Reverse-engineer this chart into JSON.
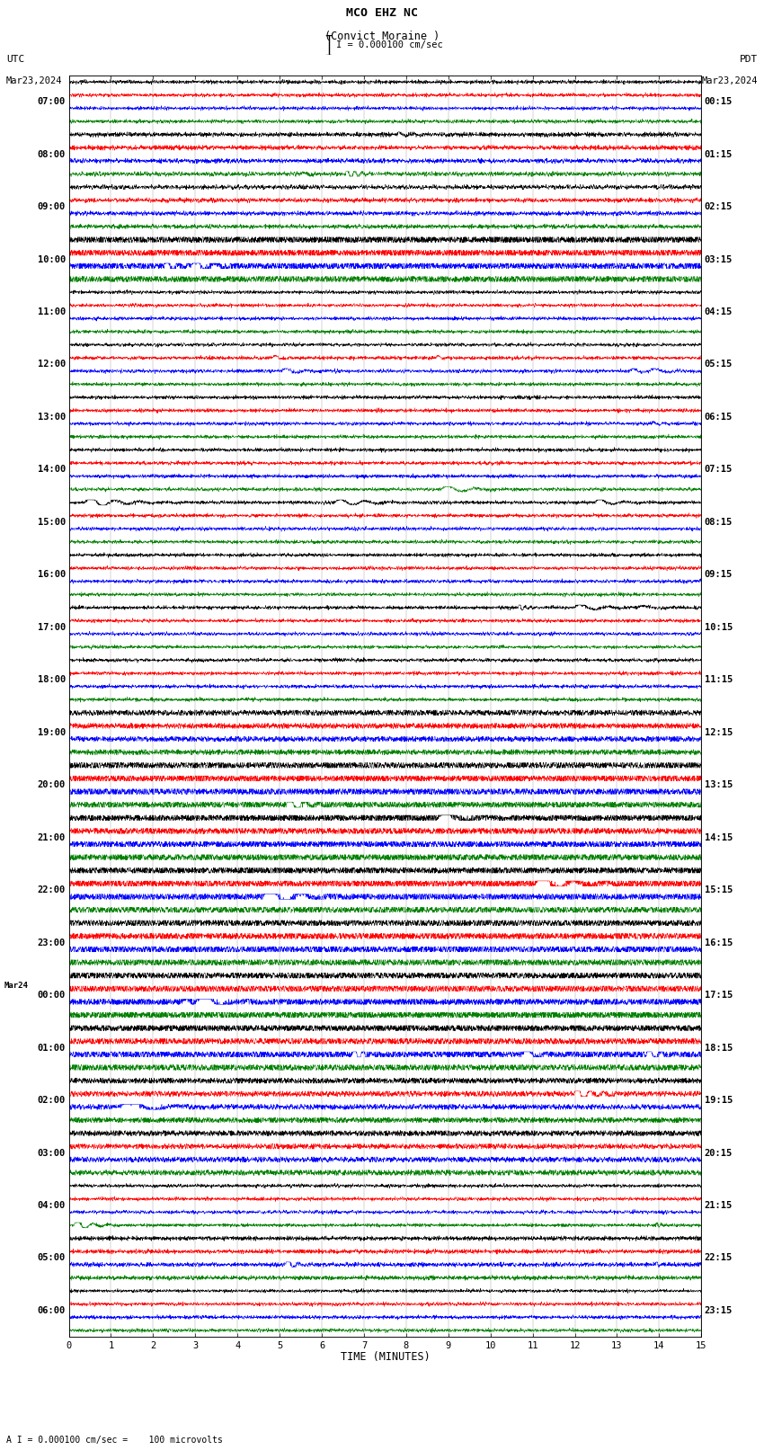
{
  "title_line1": "MCO EHZ NC",
  "title_line2": "(Convict Moraine )",
  "scale_label": "I = 0.000100 cm/sec",
  "footer_label": "A I = 0.000100 cm/sec =    100 microvolts",
  "xlabel": "TIME (MINUTES)",
  "utc_label_line1": "UTC",
  "utc_label_line2": "Mar23,2024",
  "pdt_label_line1": "PDT",
  "pdt_label_line2": "Mar23,2024",
  "left_times": [
    "07:00",
    "08:00",
    "09:00",
    "10:00",
    "11:00",
    "12:00",
    "13:00",
    "14:00",
    "15:00",
    "16:00",
    "17:00",
    "18:00",
    "19:00",
    "20:00",
    "21:00",
    "22:00",
    "23:00",
    "00:00",
    "01:00",
    "02:00",
    "03:00",
    "04:00",
    "05:00",
    "06:00"
  ],
  "mar24_row": 17,
  "right_times": [
    "00:15",
    "01:15",
    "02:15",
    "03:15",
    "04:15",
    "05:15",
    "06:15",
    "07:15",
    "08:15",
    "09:15",
    "10:15",
    "11:15",
    "12:15",
    "13:15",
    "14:15",
    "15:15",
    "16:15",
    "17:15",
    "18:15",
    "19:15",
    "20:15",
    "21:15",
    "22:15",
    "23:15"
  ],
  "n_rows": 24,
  "traces_per_row": 4,
  "colors": [
    "black",
    "red",
    "blue",
    "green"
  ],
  "bg_color": "#ffffff",
  "x_ticks": [
    0,
    1,
    2,
    3,
    4,
    5,
    6,
    7,
    8,
    9,
    10,
    11,
    12,
    13,
    14,
    15
  ],
  "x_min": 0,
  "x_max": 15,
  "noise_seed": 42,
  "lw": 0.35
}
